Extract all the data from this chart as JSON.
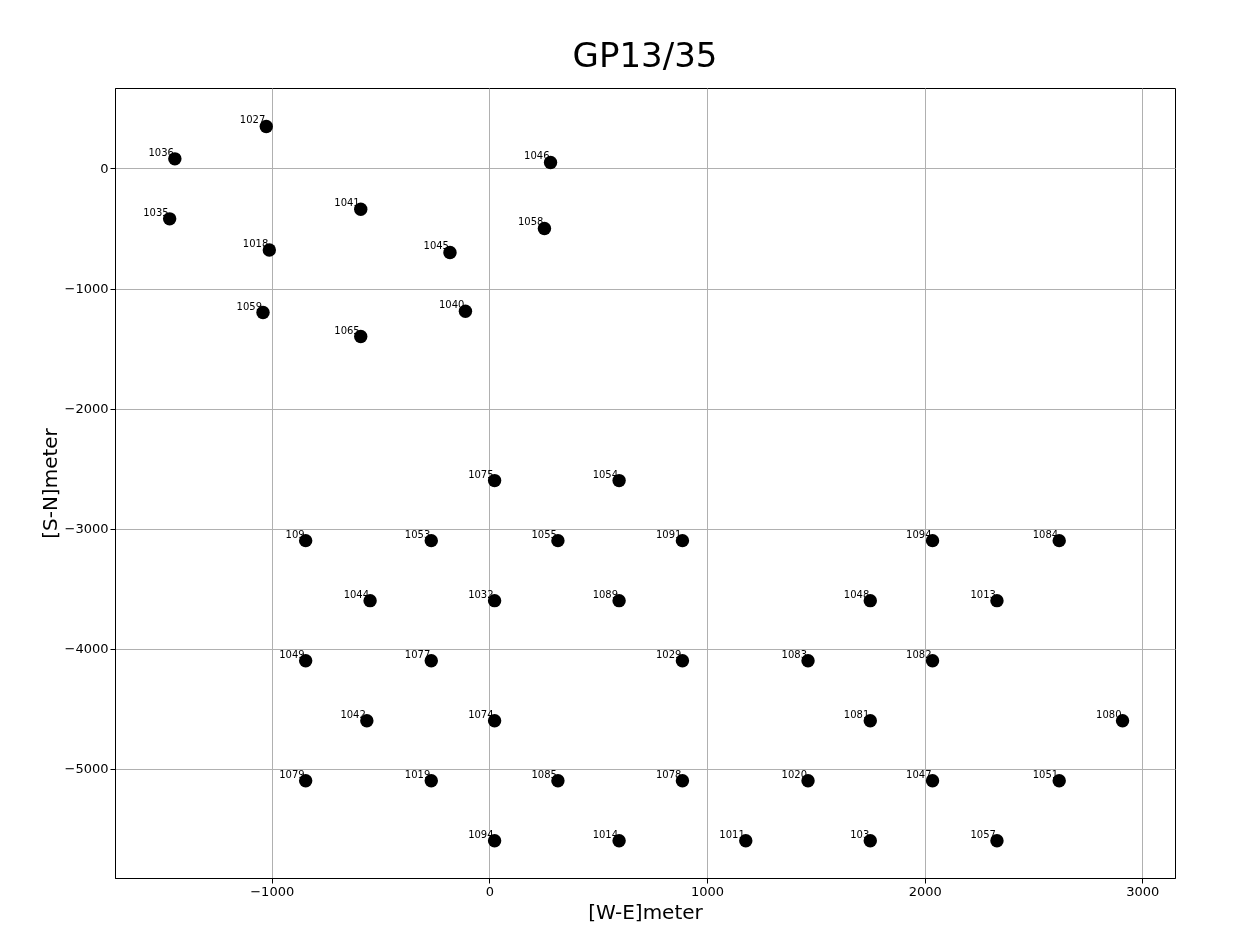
{
  "chart_data": {
    "type": "scatter",
    "title": "GP13/35",
    "xlabel": "[W-E]meter",
    "ylabel": "[S-N]meter",
    "xlim": [
      -1720,
      3150
    ],
    "ylim": [
      -5910,
      670
    ],
    "xticks": [
      -1000,
      0,
      1000,
      2000,
      3000
    ],
    "yticks": [
      -5000,
      -4000,
      -3000,
      -2000,
      -1000,
      0
    ],
    "grid": true,
    "marker": "circle",
    "series": [
      {
        "color": "#000000",
        "x": [
          -1025,
          -1445,
          281,
          -1469,
          -591,
          253,
          -1011,
          -181,
          -1040,
          -110,
          -591,
          24,
          596,
          -844,
          -267,
          315,
          887,
          2036,
          2618,
          -548,
          24,
          596,
          1750,
          2332,
          -844,
          -267,
          887,
          1464,
          2036,
          -563,
          24,
          1750,
          2909,
          -844,
          -267,
          315,
          887,
          1464,
          2036,
          2618,
          24,
          596,
          1178,
          1750,
          2332
        ],
        "values": [
          350,
          80,
          50,
          -420,
          -340,
          -500,
          -680,
          -700,
          -1200,
          -1190,
          -1400,
          -2600,
          -2600,
          -3100,
          -3100,
          -3100,
          -3100,
          -3100,
          -3100,
          -3600,
          -3600,
          -3600,
          -3600,
          -3600,
          -4100,
          -4100,
          -4100,
          -4100,
          -4100,
          -4600,
          -4600,
          -4600,
          -4600,
          -5100,
          -5100,
          -5100,
          -5100,
          -5100,
          -5100,
          -5100,
          -5600,
          -5600,
          -5600,
          -5600,
          -5600
        ]
      }
    ],
    "annotations": [
      {
        "text": "1027",
        "x": -1025,
        "y": 350
      },
      {
        "text": "1036",
        "x": -1445,
        "y": 80
      },
      {
        "text": "1046",
        "x": 281,
        "y": 50
      },
      {
        "text": "1035",
        "x": -1469,
        "y": -420
      },
      {
        "text": "1041",
        "x": -591,
        "y": -340
      },
      {
        "text": "1058",
        "x": 253,
        "y": -500
      },
      {
        "text": "1018",
        "x": -1011,
        "y": -680
      },
      {
        "text": "1045",
        "x": -181,
        "y": -700
      },
      {
        "text": "1059",
        "x": -1040,
        "y": -1200
      },
      {
        "text": "1040",
        "x": -110,
        "y": -1190
      },
      {
        "text": "1065",
        "x": -591,
        "y": -1400
      },
      {
        "text": "1075",
        "x": 24,
        "y": -2600
      },
      {
        "text": "1054",
        "x": 596,
        "y": -2600
      },
      {
        "text": "109",
        "x": -844,
        "y": -3100
      },
      {
        "text": "1053",
        "x": -267,
        "y": -3100
      },
      {
        "text": "1055",
        "x": 315,
        "y": -3100
      },
      {
        "text": "1091",
        "x": 887,
        "y": -3100
      },
      {
        "text": "1094",
        "x": 2036,
        "y": -3100
      },
      {
        "text": "1084",
        "x": 2618,
        "y": -3100
      },
      {
        "text": "1044",
        "x": -548,
        "y": -3600
      },
      {
        "text": "1032",
        "x": 24,
        "y": -3600
      },
      {
        "text": "1089",
        "x": 596,
        "y": -3600
      },
      {
        "text": "1048",
        "x": 1750,
        "y": -3600
      },
      {
        "text": "1013",
        "x": 2332,
        "y": -3600
      },
      {
        "text": "1049",
        "x": -844,
        "y": -4100
      },
      {
        "text": "1077",
        "x": -267,
        "y": -4100
      },
      {
        "text": "1029",
        "x": 887,
        "y": -4100
      },
      {
        "text": "1083",
        "x": 1464,
        "y": -4100
      },
      {
        "text": "1082",
        "x": 2036,
        "y": -4100
      },
      {
        "text": "1042",
        "x": -563,
        "y": -4600
      },
      {
        "text": "1074",
        "x": 24,
        "y": -4600
      },
      {
        "text": "1081",
        "x": 1750,
        "y": -4600
      },
      {
        "text": "1080",
        "x": 2909,
        "y": -4600
      },
      {
        "text": "1079",
        "x": -844,
        "y": -5100
      },
      {
        "text": "1019",
        "x": -267,
        "y": -5100
      },
      {
        "text": "1085",
        "x": 315,
        "y": -5100
      },
      {
        "text": "1078",
        "x": 887,
        "y": -5100
      },
      {
        "text": "1020",
        "x": 1464,
        "y": -5100
      },
      {
        "text": "1047",
        "x": 2036,
        "y": -5100
      },
      {
        "text": "1051",
        "x": 2618,
        "y": -5100
      },
      {
        "text": "1094",
        "x": 24,
        "y": -5600
      },
      {
        "text": "1014",
        "x": 596,
        "y": -5600
      },
      {
        "text": "1011",
        "x": 1178,
        "y": -5600
      },
      {
        "text": "103",
        "x": 1750,
        "y": -5600
      },
      {
        "text": "1057",
        "x": 2332,
        "y": -5600
      }
    ]
  }
}
